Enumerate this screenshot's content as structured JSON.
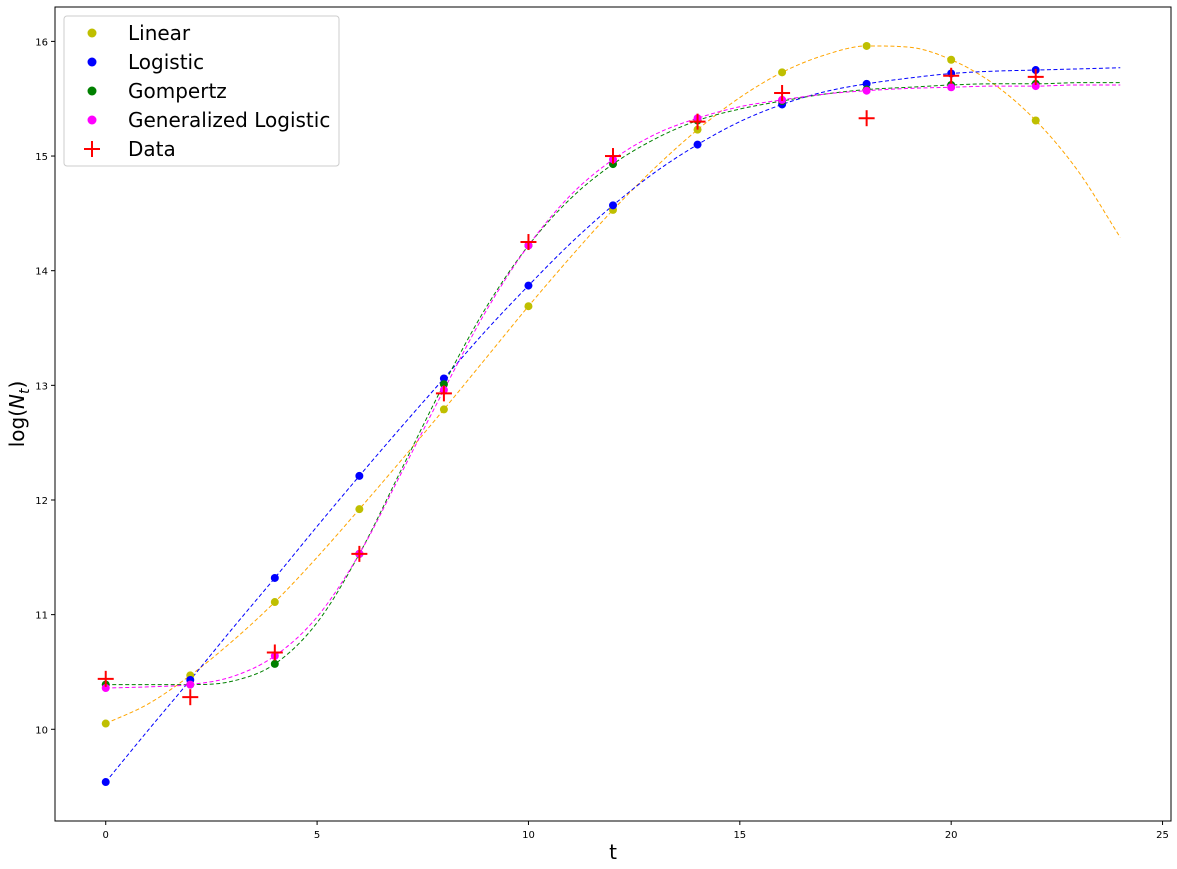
{
  "chart_data": {
    "type": "scatter",
    "xlabel": "t",
    "ylabel_base": "log(",
    "ylabel_var": "N",
    "ylabel_sub": "t",
    "ylabel_end": ")",
    "xlim": [
      -1.2,
      25.2
    ],
    "ylim": [
      9.2,
      16.3
    ],
    "xticks": [
      0,
      5,
      10,
      15,
      20,
      25
    ],
    "yticks": [
      10,
      11,
      12,
      13,
      14,
      15,
      16
    ],
    "grid": false,
    "legend_position": "upper-left",
    "series": [
      {
        "name": "Linear",
        "marker": "dot",
        "color": "#bfbf00",
        "line_color": "#ffa500",
        "x": [
          0,
          2,
          4,
          6,
          8,
          10,
          12,
          14,
          16,
          18,
          20,
          22
        ],
        "y": [
          10.05,
          10.47,
          11.11,
          11.92,
          12.79,
          13.69,
          14.53,
          15.23,
          15.73,
          15.96,
          15.84,
          15.31
        ],
        "curve_x": [
          0,
          1,
          2,
          3,
          4,
          5,
          6,
          7,
          8,
          9,
          10,
          11,
          12,
          13,
          14,
          15,
          16,
          17,
          18,
          19,
          20,
          21,
          22,
          23,
          24
        ],
        "curve_y": [
          10.05,
          10.22,
          10.47,
          10.77,
          11.11,
          11.5,
          11.92,
          12.35,
          12.79,
          13.24,
          13.69,
          14.12,
          14.53,
          14.9,
          15.23,
          15.51,
          15.73,
          15.88,
          15.96,
          15.95,
          15.84,
          15.63,
          15.31,
          14.87,
          14.29
        ]
      },
      {
        "name": "Logistic",
        "marker": "dot",
        "color": "#0000ff",
        "line_color": "#0000ff",
        "x": [
          0,
          2,
          4,
          6,
          8,
          10,
          12,
          14,
          16,
          18,
          20,
          22
        ],
        "y": [
          9.54,
          10.43,
          11.32,
          12.21,
          13.06,
          13.87,
          14.57,
          15.1,
          15.45,
          15.63,
          15.72,
          15.75
        ],
        "curve_x": [
          0,
          1,
          2,
          3,
          4,
          5,
          6,
          7,
          8,
          9,
          10,
          11,
          12,
          13,
          14,
          15,
          16,
          17,
          18,
          19,
          20,
          21,
          22,
          23,
          24
        ],
        "curve_y": [
          9.54,
          9.99,
          10.43,
          10.88,
          11.32,
          11.77,
          12.21,
          12.64,
          13.06,
          13.48,
          13.87,
          14.24,
          14.57,
          14.86,
          15.1,
          15.3,
          15.45,
          15.56,
          15.63,
          15.68,
          15.72,
          15.74,
          15.75,
          15.76,
          15.77
        ]
      },
      {
        "name": "Gompertz",
        "marker": "dot",
        "color": "#008000",
        "line_color": "#008000",
        "x": [
          0,
          2,
          4,
          6,
          8,
          10,
          12,
          14,
          16,
          18,
          20,
          22
        ],
        "y": [
          10.39,
          10.39,
          10.57,
          11.53,
          13.01,
          14.22,
          14.93,
          15.31,
          15.48,
          15.58,
          15.62,
          15.63
        ],
        "curve_x": [
          0,
          1,
          2,
          3,
          4,
          5,
          6,
          7,
          8,
          9,
          10,
          11,
          12,
          13,
          14,
          15,
          16,
          17,
          18,
          19,
          20,
          21,
          22,
          23,
          24
        ],
        "curve_y": [
          10.39,
          10.39,
          10.39,
          10.42,
          10.57,
          10.93,
          11.53,
          12.27,
          13.01,
          13.68,
          14.22,
          14.63,
          14.93,
          15.15,
          15.31,
          15.41,
          15.48,
          15.54,
          15.58,
          15.6,
          15.62,
          15.63,
          15.63,
          15.64,
          15.64
        ]
      },
      {
        "name": "Generalized Logistic",
        "marker": "dot",
        "color": "#ff00ff",
        "line_color": "#ff00ff",
        "x": [
          0,
          2,
          4,
          6,
          8,
          10,
          12,
          14,
          16,
          18,
          20,
          22
        ],
        "y": [
          10.36,
          10.39,
          10.64,
          11.53,
          12.96,
          14.22,
          14.97,
          15.33,
          15.49,
          15.57,
          15.6,
          15.61
        ],
        "curve_x": [
          0,
          1,
          2,
          3,
          4,
          5,
          6,
          7,
          8,
          9,
          10,
          11,
          12,
          13,
          14,
          15,
          16,
          17,
          18,
          19,
          20,
          21,
          22,
          23,
          24
        ],
        "curve_y": [
          10.36,
          10.37,
          10.39,
          10.46,
          10.64,
          10.98,
          11.53,
          12.24,
          12.96,
          13.65,
          14.22,
          14.66,
          14.97,
          15.19,
          15.33,
          15.43,
          15.49,
          15.54,
          15.57,
          15.59,
          15.6,
          15.61,
          15.61,
          15.62,
          15.62
        ]
      },
      {
        "name": "Data",
        "marker": "plus",
        "color": "#ff0000",
        "x": [
          0,
          2,
          4,
          6,
          8,
          10,
          12,
          14,
          16,
          18,
          20,
          22
        ],
        "y": [
          10.44,
          10.28,
          10.67,
          11.53,
          12.93,
          14.25,
          15.0,
          15.3,
          15.55,
          15.33,
          15.7,
          15.69
        ]
      }
    ]
  }
}
